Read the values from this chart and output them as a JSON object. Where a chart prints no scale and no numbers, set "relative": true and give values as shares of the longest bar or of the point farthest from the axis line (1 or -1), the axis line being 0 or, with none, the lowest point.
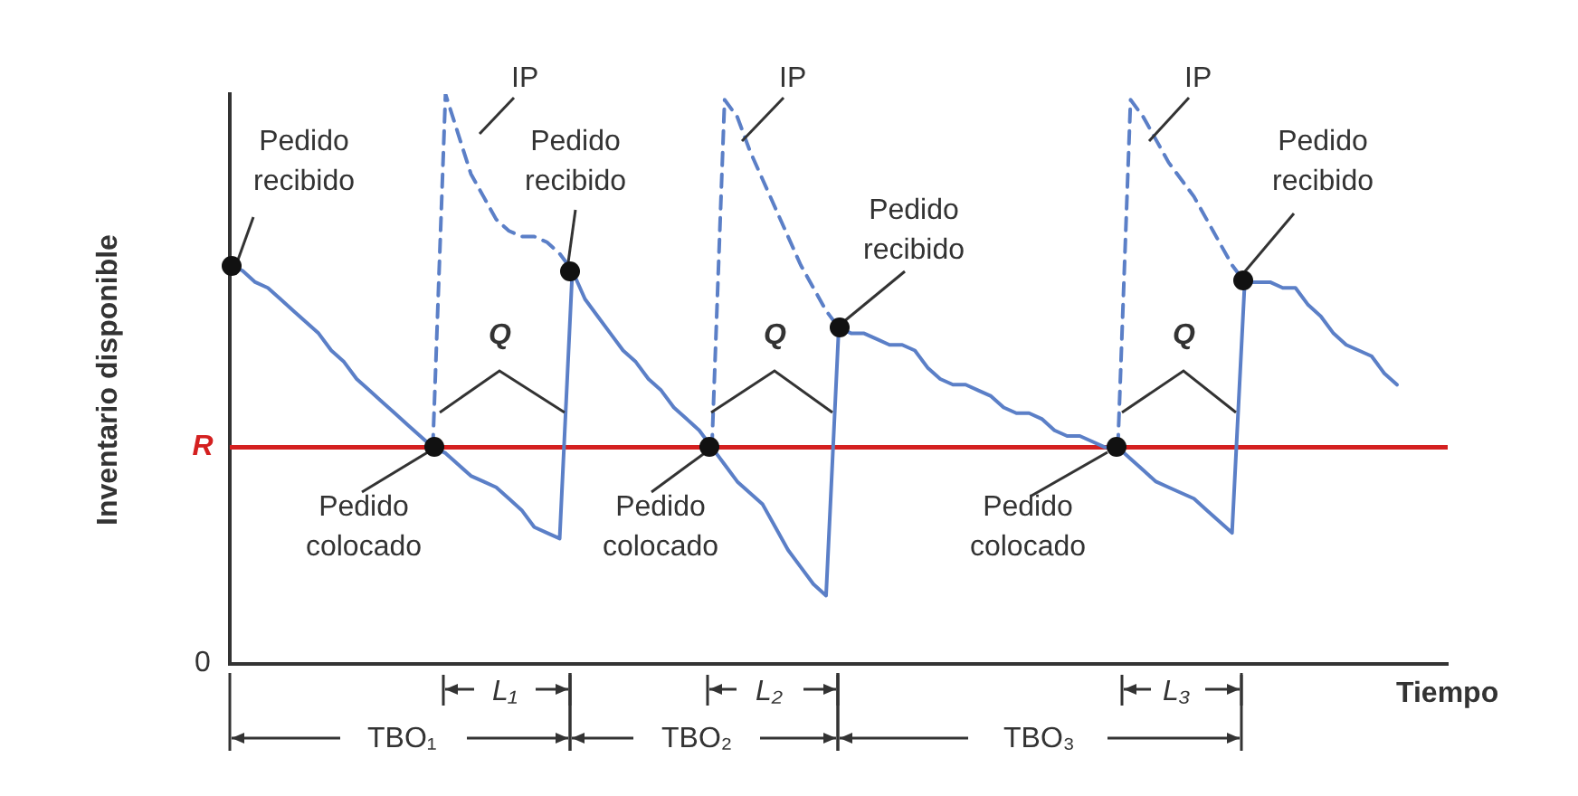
{
  "chart_data": {
    "type": "line",
    "relative": true,
    "xlabel": "Tiempo",
    "ylabel": "Inventario disponible",
    "marker": "none",
    "categories": [
      null,
      null,
      null,
      null,
      null,
      null,
      null,
      null,
      null,
      null,
      null,
      null,
      null,
      null,
      null,
      null,
      null,
      null,
      null,
      null,
      null,
      null,
      null,
      null,
      null,
      null,
      null,
      null,
      null,
      null,
      null,
      null,
      null,
      null,
      null,
      null,
      null,
      null,
      null,
      null,
      null,
      null,
      null,
      null,
      null,
      null,
      null,
      null,
      null,
      null,
      null,
      null,
      null,
      null,
      null,
      null,
      null,
      null,
      null,
      null,
      null,
      null,
      null,
      null,
      null,
      null,
      null,
      null,
      null,
      null,
      null,
      null,
      null,
      null,
      null,
      null,
      null,
      null,
      null,
      null,
      null,
      null,
      null,
      null,
      null,
      null,
      null,
      null,
      null,
      null,
      null,
      null,
      null,
      null,
      null,
      null,
      null
    ],
    "series": [
      {
        "color": "#5b7fc7",
        "line_style": "solid",
        "values": [
          0.7,
          0.69,
          0.67,
          0.66,
          0.64,
          0.62,
          0.6,
          0.58,
          0.55,
          0.53,
          0.5,
          0.48,
          0.46,
          0.44,
          0.42,
          0.4,
          0.38,
          0.37,
          0.35,
          0.33,
          0.32,
          0.31,
          0.29,
          0.27,
          0.24,
          0.23,
          0.22,
          0.69,
          0.64,
          0.61,
          0.58,
          0.55,
          0.53,
          0.5,
          0.48,
          0.45,
          0.43,
          0.41,
          0.38,
          0.35,
          0.32,
          0.3,
          0.28,
          0.24,
          0.2,
          0.17,
          0.14,
          0.12,
          0.59,
          0.58,
          0.58,
          0.57,
          0.56,
          0.56,
          0.55,
          0.52,
          0.5,
          0.49,
          0.49,
          0.48,
          0.47,
          0.45,
          0.44,
          0.44,
          0.43,
          0.41,
          0.4,
          0.4,
          0.39,
          0.38,
          0.38,
          0.36,
          0.34,
          0.32,
          0.31,
          0.3,
          0.29,
          0.27,
          0.25,
          0.23,
          0.67,
          0.67,
          0.67,
          0.66,
          0.66,
          0.63,
          0.61,
          0.58,
          0.56,
          0.55,
          0.54,
          0.51,
          0.49,
          null,
          null,
          null,
          null
        ]
      },
      {
        "name": "IP",
        "color": "#5b7fc7",
        "line_style": "dashed",
        "values": [
          null,
          null,
          null,
          null,
          null,
          null,
          null,
          null,
          null,
          null,
          null,
          null,
          null,
          null,
          null,
          null,
          0.38,
          1.0,
          0.93,
          0.86,
          0.82,
          0.78,
          0.76,
          0.75,
          0.75,
          0.74,
          0.72,
          0.69,
          null,
          null,
          null,
          null,
          null,
          null,
          null,
          null,
          null,
          null,
          null,
          null,
          null,
          null,
          null,
          null,
          null,
          null,
          null,
          null,
          null,
          null,
          null,
          null,
          null,
          null,
          null,
          null,
          null,
          null,
          null,
          null,
          null,
          null,
          null,
          null,
          null,
          null,
          null,
          null,
          null,
          null,
          null,
          null,
          null,
          null,
          null,
          null,
          null,
          null,
          null,
          null,
          null,
          null,
          null,
          null,
          null,
          null,
          null,
          null,
          null,
          null,
          null,
          null,
          null,
          null,
          null,
          null,
          null
        ]
      },
      {
        "name": "IP",
        "color": "#5b7fc7",
        "line_style": "dashed",
        "values": [
          null,
          null,
          null,
          null,
          null,
          null,
          null,
          null,
          null,
          null,
          null,
          null,
          null,
          null,
          null,
          null,
          null,
          null,
          null,
          null,
          null,
          null,
          null,
          null,
          null,
          null,
          null,
          null,
          null,
          null,
          null,
          null,
          null,
          null,
          null,
          null,
          null,
          null,
          0.38,
          0.99,
          0.96,
          0.9,
          0.85,
          0.8,
          0.75,
          0.7,
          0.66,
          0.62,
          0.59,
          null,
          null,
          null,
          null,
          null,
          null,
          null,
          null,
          null,
          null,
          null,
          null,
          null,
          null,
          null,
          null,
          null,
          null,
          null,
          null,
          null,
          null,
          null,
          null,
          null,
          null,
          null,
          null,
          null,
          null,
          null,
          null,
          null,
          null,
          null,
          null,
          null,
          null,
          null,
          null,
          null,
          null,
          null,
          null,
          null,
          null,
          null,
          null
        ]
      },
      {
        "name": "IP",
        "color": "#5b7fc7",
        "line_style": "dashed",
        "values": [
          null,
          null,
          null,
          null,
          null,
          null,
          null,
          null,
          null,
          null,
          null,
          null,
          null,
          null,
          null,
          null,
          null,
          null,
          null,
          null,
          null,
          null,
          null,
          null,
          null,
          null,
          null,
          null,
          null,
          null,
          null,
          null,
          null,
          null,
          null,
          null,
          null,
          null,
          null,
          null,
          null,
          null,
          null,
          null,
          null,
          null,
          null,
          null,
          null,
          null,
          null,
          null,
          null,
          null,
          null,
          null,
          null,
          null,
          null,
          null,
          null,
          null,
          null,
          null,
          null,
          null,
          null,
          null,
          null,
          null,
          0.38,
          0.99,
          0.96,
          0.92,
          0.88,
          0.85,
          0.82,
          0.78,
          0.74,
          0.7,
          0.67,
          null,
          null,
          null,
          null,
          null,
          null,
          null,
          null,
          null,
          null,
          null,
          null,
          null,
          null,
          null,
          null
        ]
      }
    ],
    "ref_lines": [
      {
        "axis": "y",
        "value": 0.38,
        "label": "R",
        "color": "#d42020"
      }
    ],
    "annotations": [
      "Pedido recibido",
      "Pedido recibido",
      "Pedido recibido",
      "Pedido recibido",
      "Pedido colocado",
      "Pedido colocado",
      "Pedido colocado",
      "Q",
      "Q",
      "Q",
      "L₁",
      "L₂",
      "L₃",
      "TBO₁",
      "TBO₂",
      "TBO₃",
      "0"
    ]
  }
}
